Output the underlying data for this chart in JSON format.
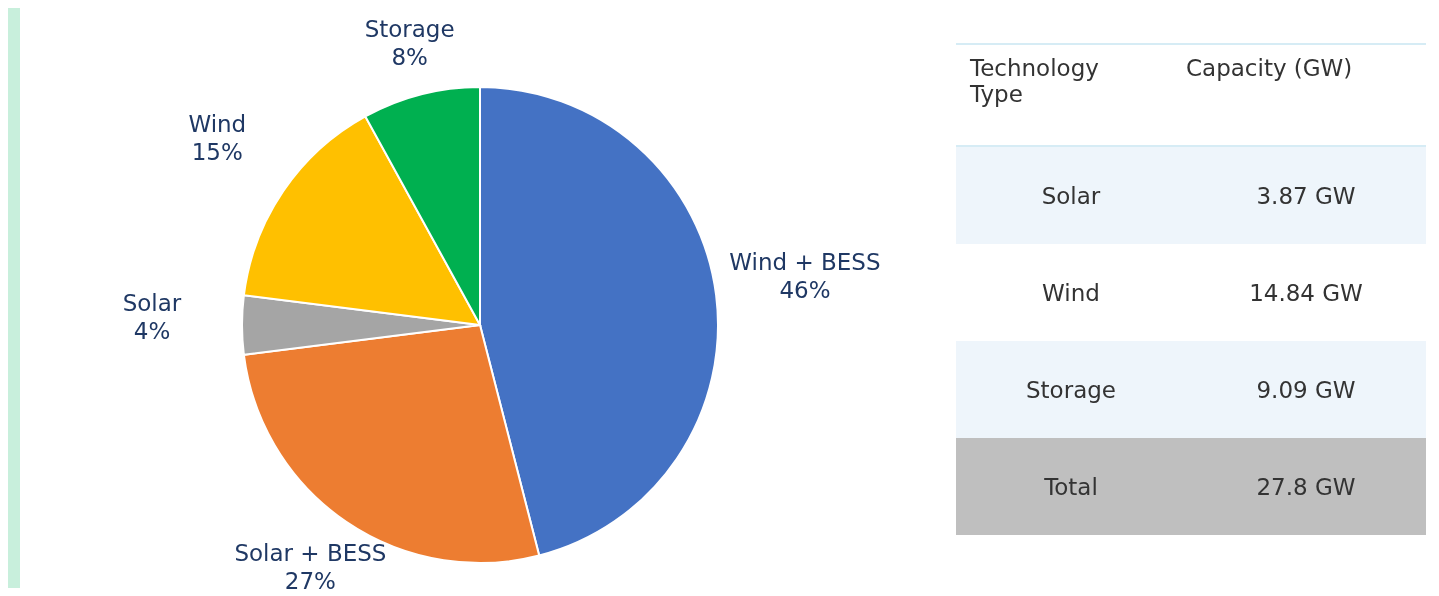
{
  "chart_data": [
    {
      "type": "pie",
      "categories": [
        "Wind + BESS",
        "Solar + BESS",
        "Solar",
        "Wind",
        "Storage"
      ],
      "values": [
        46,
        27,
        4,
        15,
        8
      ],
      "colors": [
        "#4472c4",
        "#ed7d31",
        "#a5a5a5",
        "#ffc000",
        "#00b050"
      ],
      "value_labels": [
        "46%",
        "27%",
        "4%",
        "15%",
        "8%"
      ]
    },
    {
      "type": "other",
      "xlabel": "Technology Type",
      "ylabel": "Capacity (GW)",
      "categories": [
        "Solar",
        "Wind",
        "Storage",
        "Total"
      ],
      "value_labels": [
        "3.87 GW",
        "14.84 GW",
        "9.09 GW",
        "27.8 GW"
      ]
    }
  ]
}
